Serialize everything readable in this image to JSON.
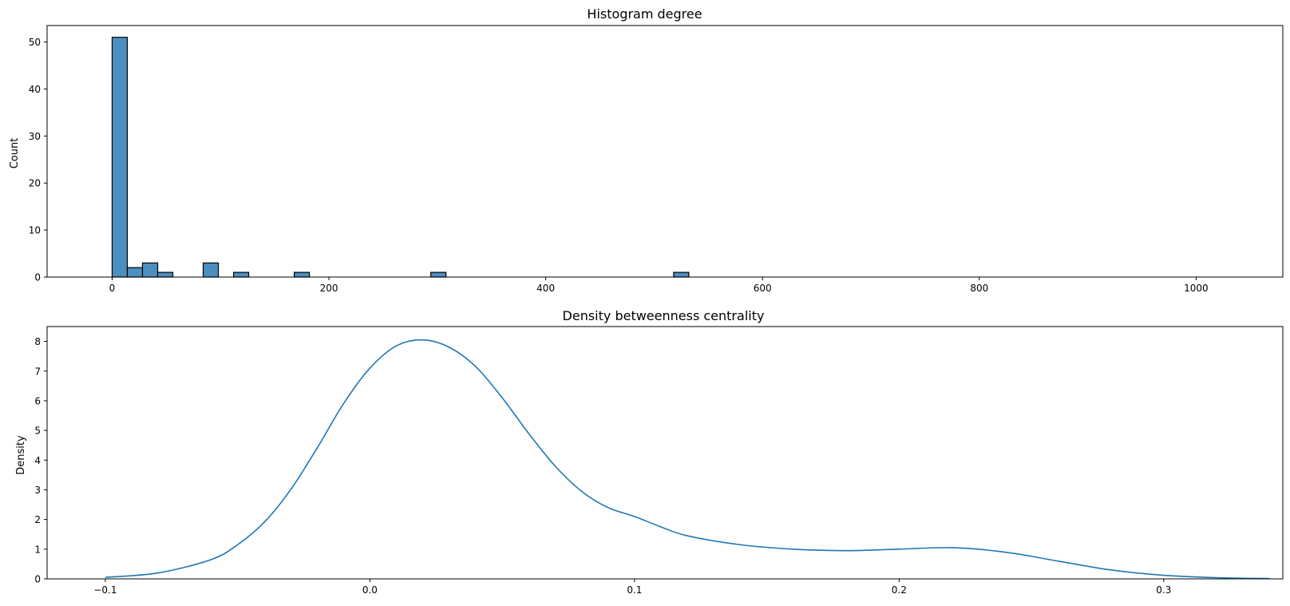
{
  "chart_data": [
    {
      "type": "histogram",
      "title": "Histogram degree",
      "xlabel": "",
      "ylabel": "Count",
      "xlim": [
        -60,
        1080
      ],
      "ylim": [
        0,
        53.5
      ],
      "xticks": [
        0,
        200,
        400,
        600,
        800,
        1000
      ],
      "yticks": [
        0,
        10,
        20,
        30,
        40,
        50
      ],
      "bin_width": 14,
      "bars": [
        {
          "x0": 0,
          "x1": 14,
          "count": 51
        },
        {
          "x0": 14,
          "x1": 28,
          "count": 2
        },
        {
          "x0": 28,
          "x1": 42,
          "count": 3
        },
        {
          "x0": 42,
          "x1": 56,
          "count": 1
        },
        {
          "x0": 84,
          "x1": 98,
          "count": 3
        },
        {
          "x0": 112,
          "x1": 126,
          "count": 1
        },
        {
          "x0": 168,
          "x1": 182,
          "count": 1
        },
        {
          "x0": 294,
          "x1": 308,
          "count": 1
        },
        {
          "x0": 518,
          "x1": 532,
          "count": 1
        },
        {
          "x0": 1022,
          "x1": 1036,
          "count": 0
        }
      ],
      "color": "#4c8fbf",
      "edgecolor": "#000000",
      "grid": false
    },
    {
      "type": "line",
      "title": "Density betweenness centrality",
      "xlabel": "",
      "ylabel": "Density",
      "xlim": [
        -0.122,
        0.345
      ],
      "ylim": [
        0,
        8.5
      ],
      "xticks": [
        -0.1,
        0.0,
        0.1,
        0.2,
        0.3
      ],
      "xtick_labels": [
        "−0.1",
        "0.0",
        "0.1",
        "0.2",
        "0.3"
      ],
      "yticks": [
        0,
        1,
        2,
        3,
        4,
        5,
        6,
        7,
        8
      ],
      "x": [
        -0.1,
        -0.08,
        -0.06,
        -0.05,
        -0.04,
        -0.03,
        -0.02,
        -0.01,
        0.0,
        0.01,
        0.02,
        0.03,
        0.04,
        0.05,
        0.06,
        0.07,
        0.08,
        0.09,
        0.1,
        0.11,
        0.12,
        0.14,
        0.16,
        0.18,
        0.2,
        0.22,
        0.24,
        0.26,
        0.28,
        0.3,
        0.32,
        0.34
      ],
      "y": [
        0.05,
        0.2,
        0.65,
        1.15,
        1.9,
        3.0,
        4.4,
        5.9,
        7.1,
        7.85,
        8.05,
        7.8,
        7.15,
        6.1,
        4.9,
        3.8,
        2.95,
        2.4,
        2.1,
        1.75,
        1.45,
        1.15,
        1.0,
        0.95,
        1.0,
        1.05,
        0.9,
        0.6,
        0.3,
        0.12,
        0.04,
        0.01
      ],
      "color": "#1f77b4",
      "grid": false
    }
  ]
}
